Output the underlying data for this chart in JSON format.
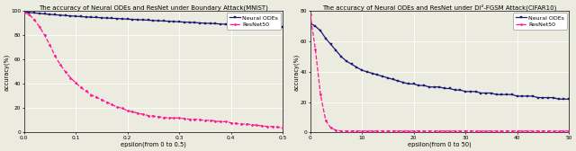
{
  "plot1": {
    "title": "The accuracy of Neural ODEs and ResNet under Boundary Attack(MNIST)",
    "xlabel": "epsilon(from 0 to 0.5)",
    "ylabel": "accuracy(%)",
    "xlim": [
      0.0,
      0.5
    ],
    "ylim": [
      0,
      100
    ],
    "yticks": [
      0,
      20,
      40,
      60,
      80,
      100
    ],
    "xticks": [
      0.0,
      0.1,
      0.2,
      0.3,
      0.4,
      0.5
    ],
    "neural_ode_color": "#191970",
    "resnet_color": "#FF1493",
    "neural_ode_x": [
      0.0,
      0.01,
      0.02,
      0.03,
      0.04,
      0.05,
      0.06,
      0.07,
      0.08,
      0.09,
      0.1,
      0.11,
      0.12,
      0.13,
      0.14,
      0.15,
      0.16,
      0.17,
      0.18,
      0.19,
      0.2,
      0.21,
      0.22,
      0.23,
      0.24,
      0.25,
      0.26,
      0.27,
      0.28,
      0.29,
      0.3,
      0.31,
      0.32,
      0.33,
      0.34,
      0.35,
      0.36,
      0.37,
      0.38,
      0.39,
      0.4,
      0.41,
      0.42,
      0.43,
      0.44,
      0.45,
      0.46,
      0.47,
      0.48,
      0.49,
      0.5
    ],
    "neural_ode_y": [
      99.2,
      98.8,
      98.4,
      98.0,
      97.6,
      97.2,
      96.9,
      96.6,
      96.3,
      96.0,
      95.7,
      95.4,
      95.1,
      94.9,
      94.7,
      94.5,
      94.2,
      94.0,
      93.8,
      93.6,
      93.3,
      93.1,
      92.9,
      92.7,
      92.5,
      92.2,
      92.0,
      91.8,
      91.6,
      91.4,
      91.1,
      90.9,
      90.7,
      90.5,
      90.2,
      90.0,
      89.8,
      89.6,
      89.3,
      89.1,
      88.9,
      88.7,
      88.4,
      88.2,
      88.0,
      87.7,
      87.5,
      87.3,
      87.1,
      86.8,
      86.6
    ],
    "resnet_x": [
      0.0,
      0.01,
      0.02,
      0.03,
      0.04,
      0.05,
      0.06,
      0.07,
      0.08,
      0.09,
      0.1,
      0.11,
      0.12,
      0.13,
      0.14,
      0.15,
      0.16,
      0.17,
      0.18,
      0.19,
      0.2,
      0.21,
      0.22,
      0.23,
      0.24,
      0.25,
      0.26,
      0.27,
      0.28,
      0.29,
      0.3,
      0.31,
      0.32,
      0.33,
      0.34,
      0.35,
      0.36,
      0.37,
      0.38,
      0.39,
      0.4,
      0.41,
      0.42,
      0.43,
      0.44,
      0.45,
      0.46,
      0.47,
      0.48,
      0.49,
      0.5
    ],
    "resnet_y": [
      99,
      97,
      93,
      87,
      80,
      72,
      63,
      56,
      50,
      45,
      41,
      37,
      34,
      31,
      29,
      27,
      25,
      23,
      21,
      20,
      18,
      17,
      16,
      15,
      14,
      13.5,
      13,
      12.5,
      12,
      12,
      12,
      11.5,
      11,
      11,
      10.5,
      10,
      10,
      9.5,
      9,
      9,
      8,
      7.5,
      7,
      7,
      6.5,
      6,
      5.5,
      5,
      5,
      4.5,
      4
    ]
  },
  "plot2": {
    "title": "The accuracy of Neural ODEs and ResNet under DI²-FGSM Attack(CIFAR10)",
    "xlabel": "epsilon(from 0 to 50)",
    "ylabel": "accuracy(%)",
    "xlim": [
      0,
      50
    ],
    "ylim": [
      0,
      80
    ],
    "yticks": [
      0,
      20,
      40,
      60,
      80
    ],
    "xticks": [
      0,
      10,
      20,
      30,
      40,
      50
    ],
    "neural_ode_color": "#191970",
    "resnet_color": "#FF1493",
    "neural_ode_x": [
      0,
      1,
      2,
      3,
      4,
      5,
      6,
      7,
      8,
      9,
      10,
      11,
      12,
      13,
      14,
      15,
      16,
      17,
      18,
      19,
      20,
      21,
      22,
      23,
      24,
      25,
      26,
      27,
      28,
      29,
      30,
      31,
      32,
      33,
      34,
      35,
      36,
      37,
      38,
      39,
      40,
      41,
      42,
      43,
      44,
      45,
      46,
      47,
      48,
      49,
      50
    ],
    "neural_ode_y": [
      72,
      70,
      67,
      62,
      58,
      54,
      50,
      47,
      45,
      43,
      41,
      40,
      39,
      38,
      37,
      36,
      35,
      34,
      33,
      32,
      32,
      31,
      31,
      30,
      30,
      30,
      29,
      29,
      28,
      28,
      27,
      27,
      27,
      26,
      26,
      26,
      25,
      25,
      25,
      25,
      24,
      24,
      24,
      24,
      23,
      23,
      23,
      23,
      22,
      22,
      22
    ],
    "resnet_x": [
      0,
      1,
      2,
      3,
      4,
      5,
      6,
      7,
      8,
      9,
      10,
      11,
      12,
      13,
      14,
      15,
      16,
      17,
      18,
      19,
      20,
      21,
      22,
      23,
      24,
      25,
      26,
      27,
      28,
      29,
      30,
      31,
      32,
      33,
      34,
      35,
      36,
      37,
      38,
      39,
      40,
      41,
      42,
      43,
      44,
      45,
      46,
      47,
      48,
      49,
      50
    ],
    "resnet_y": [
      78,
      55,
      25,
      8,
      3,
      1.5,
      1,
      1,
      1,
      1,
      1,
      1,
      1,
      1,
      1,
      1,
      1,
      1,
      1,
      1,
      1,
      1,
      1,
      1,
      1,
      1,
      1,
      1,
      1,
      1,
      1,
      1,
      1,
      1,
      1,
      1,
      1,
      1,
      1,
      1,
      1,
      1,
      1,
      1,
      1,
      1,
      1,
      1,
      1,
      1,
      1
    ]
  },
  "bg_color": "#ebebdf",
  "grid_color": "white",
  "title_fontsize": 5.0,
  "label_fontsize": 4.8,
  "tick_fontsize": 4.2,
  "legend_fontsize": 4.5,
  "linewidth": 0.9,
  "marker_size": 1.5
}
